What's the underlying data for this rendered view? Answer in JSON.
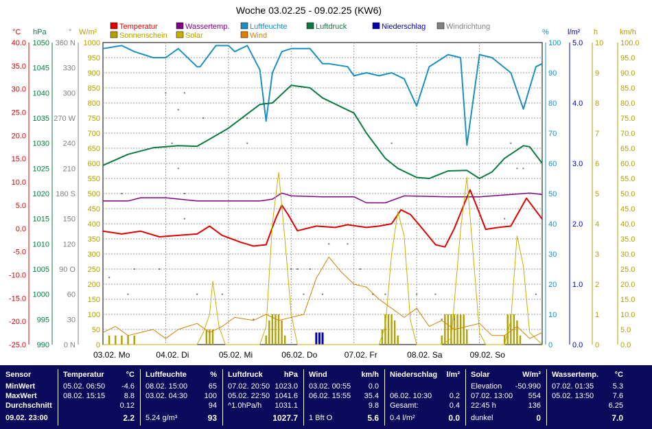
{
  "title": "Woche 03.02.25 - 09.02.25 (KW6)",
  "legend": [
    {
      "label": "Temperatur",
      "color": "#e00000"
    },
    {
      "label": "Wassertemp.",
      "color": "#800080"
    },
    {
      "label": "Luftfeuchte",
      "color": "#1a8fc0"
    },
    {
      "label": "Luftdruck",
      "color": "#0a7a40"
    },
    {
      "label": "Niederschlag",
      "color": "#0000b0"
    },
    {
      "label": "Windrichtung",
      "color": "#808080"
    },
    {
      "label": "Sonnenschein",
      "color": "#b0a000"
    },
    {
      "label": "Solar",
      "color": "#c8b000"
    },
    {
      "label": "Wind",
      "color": "#e08000"
    }
  ],
  "axes_units": {
    "temp": "°C",
    "press": "hPa",
    "dir": "°",
    "solar": "W/m²",
    "hum": "%",
    "rain": "l/m²",
    "sun": "h",
    "wind": "km/h"
  },
  "chart_data": {
    "type": "line",
    "x_categories": [
      "03.02. Mo",
      "04.02. Di",
      "05.02. Mi",
      "06.02. Do",
      "07.02. Fr",
      "08.02. Sa",
      "09.02. So"
    ],
    "temp_ticks": [
      "40.0",
      "35.0",
      "30.0",
      "25.0",
      "20.0",
      "15.0",
      "10.0",
      "5.0",
      "0.0",
      "-5.0",
      "-10.0",
      "-15.0",
      "-20.0",
      "-25.0"
    ],
    "press_ticks": [
      "1050",
      "1045",
      "1040",
      "1035",
      "1030",
      "1025",
      "1020",
      "1015",
      "1010",
      "1005",
      "1000",
      "995",
      "990"
    ],
    "dir_ticks": [
      "360 N",
      "330",
      "300",
      "270 W",
      "240",
      "210",
      "180 S",
      "150",
      "120",
      "90 O",
      "60",
      "30",
      "0 N"
    ],
    "solar_ticks": [
      "1000",
      "950",
      "900",
      "850",
      "800",
      "750",
      "700",
      "650",
      "600",
      "550",
      "500",
      "450",
      "400",
      "350",
      "300",
      "250",
      "200",
      "150",
      "100",
      "50",
      "0"
    ],
    "hum_ticks": [
      "100",
      "90",
      "80",
      "70",
      "60",
      "50",
      "40",
      "30",
      "20",
      "10",
      "0"
    ],
    "rain_ticks": [
      "5.0",
      "4.0",
      "3.0",
      "2.0",
      "1.0",
      "0.0"
    ],
    "sun_ticks": [
      "10",
      "9",
      "8",
      "7",
      "6",
      "5",
      "4",
      "3",
      "2",
      "1",
      "0"
    ],
    "wind_ticks": [
      "100.0",
      "95.0",
      "90.0",
      "85.0",
      "80.0",
      "75.0",
      "70.0",
      "65.0",
      "60.0",
      "55.0",
      "50.0",
      "45.0",
      "40.0",
      "35.0",
      "30.0",
      "25.0",
      "20.0",
      "15.0",
      "10.0",
      "5.0",
      "0.0"
    ],
    "series": [
      {
        "name": "Temperatur",
        "unit": "°C",
        "x": [
          0,
          0.3,
          0.6,
          0.9,
          1.2,
          1.5,
          1.7,
          1.9,
          2.2,
          2.4,
          2.6,
          2.75,
          2.85,
          2.95,
          3.1,
          3.4,
          3.7,
          3.9,
          4.2,
          4.4,
          4.6,
          4.75,
          4.9,
          5.1,
          5.3,
          5.45,
          5.6,
          5.75,
          5.85,
          5.95,
          6.1,
          6.3,
          6.5,
          6.75,
          7
        ],
        "y": [
          -0.6,
          -1.2,
          -0.6,
          -1.8,
          -1.5,
          -1.2,
          0.5,
          -1.5,
          -3.0,
          -3.8,
          -3.5,
          2.0,
          5.0,
          3.0,
          -0.5,
          0.5,
          0.2,
          0.8,
          0.2,
          0.5,
          1.0,
          4.0,
          3.0,
          -0.2,
          -3.5,
          -4.0,
          0,
          5.0,
          8.3,
          5.0,
          -0.2,
          0.2,
          0.5,
          6.5,
          2.0
        ]
      },
      {
        "name": "Wassertemp.",
        "unit": "°C",
        "x": [
          0,
          0.4,
          0.6,
          1.0,
          1.5,
          2.0,
          2.5,
          2.7,
          2.85,
          3.0,
          3.5,
          4.0,
          4.2,
          4.5,
          4.8,
          5.5,
          5.8,
          6.0,
          6.5,
          6.8,
          7
        ],
        "y": [
          5.9,
          5.9,
          6.6,
          6.6,
          5.9,
          5.9,
          5.9,
          6.3,
          7.6,
          7.0,
          6.8,
          6.8,
          5.5,
          5.5,
          7.0,
          6.8,
          6.8,
          6.8,
          7.3,
          7.6,
          7.3
        ]
      },
      {
        "name": "Luftfeuchte",
        "unit": "%",
        "x": [
          0,
          0.3,
          0.5,
          0.8,
          1.0,
          1.2,
          1.5,
          1.55,
          1.8,
          2.0,
          2.1,
          2.3,
          2.5,
          2.6,
          2.7,
          2.85,
          3.0,
          3.3,
          3.5,
          3.6,
          3.9,
          4.0,
          4.2,
          4.4,
          4.6,
          4.8,
          5.0,
          5.2,
          5.5,
          5.7,
          5.8,
          6.0,
          6.2,
          6.5,
          6.7,
          6.9,
          7.0
        ],
        "y": [
          98,
          99,
          97,
          95,
          95,
          98,
          92,
          92,
          99,
          99,
          97,
          99,
          91,
          74,
          90,
          97,
          98,
          98,
          93,
          93,
          92,
          89,
          90,
          89,
          90,
          88,
          79,
          92,
          96,
          95,
          66,
          96,
          95,
          90,
          78,
          92,
          93
        ]
      },
      {
        "name": "Luftdruck",
        "unit": "hPa",
        "x": [
          0,
          0.4,
          0.8,
          1.0,
          1.2,
          1.5,
          1.7,
          2.0,
          2.5,
          2.7,
          3.0,
          3.3,
          3.5,
          4.0,
          4.2,
          4.5,
          4.7,
          5.0,
          5.2,
          5.5,
          5.8,
          6.0,
          6.2,
          6.4,
          6.7,
          6.8,
          7.0
        ],
        "y": [
          1025.6,
          1027.8,
          1029.1,
          1029.3,
          1029.5,
          1029.4,
          1030.8,
          1033.0,
          1037.7,
          1038.0,
          1041.5,
          1041.0,
          1039.0,
          1036.0,
          1032.0,
          1027.0,
          1025.0,
          1023.2,
          1023.0,
          1024.5,
          1024.6,
          1023.0,
          1024.3,
          1027.0,
          1029.5,
          1029.3,
          1026.0
        ]
      },
      {
        "name": "Solar",
        "unit": "W/m²",
        "x": [
          0,
          1.5,
          1.6,
          1.7,
          1.75,
          1.85,
          1.95,
          2.5,
          2.6,
          2.7,
          2.8,
          2.9,
          3.0,
          3.1,
          3.5,
          4.4,
          4.5,
          4.6,
          4.7,
          4.8,
          4.9,
          5.0,
          5.4,
          5.55,
          5.7,
          5.8,
          5.9,
          6.0,
          6.1,
          6.4,
          6.5,
          6.6,
          6.7,
          6.8,
          7
        ],
        "y": [
          0,
          0,
          40,
          100,
          210,
          60,
          0,
          0,
          60,
          400,
          570,
          350,
          100,
          0,
          0,
          0,
          60,
          300,
          440,
          360,
          80,
          0,
          0,
          20,
          380,
          554,
          300,
          40,
          0,
          0,
          80,
          360,
          260,
          40,
          0
        ]
      },
      {
        "name": "Wind",
        "unit": "km/h",
        "x": [
          0,
          0.2,
          0.4,
          0.6,
          0.8,
          1.0,
          1.2,
          1.5,
          1.7,
          1.9,
          2.1,
          2.4,
          2.6,
          2.8,
          3.0,
          3.2,
          3.4,
          3.6,
          3.8,
          4.0,
          4.2,
          4.4,
          4.6,
          4.8,
          5.0,
          5.2,
          5.4,
          5.6,
          5.8,
          6.0,
          6.2,
          6.4,
          6.6,
          6.8,
          7.0
        ],
        "y": [
          4,
          6,
          3,
          4,
          5,
          2,
          5,
          7,
          4,
          6,
          9,
          8,
          10,
          8,
          9,
          10,
          22,
          29,
          24,
          20,
          19,
          15,
          12,
          9,
          12,
          6,
          8,
          5,
          6,
          7,
          3,
          3,
          6,
          2,
          4
        ]
      }
    ],
    "precipitation": {
      "unit": "l/m²",
      "x": [
        3.4,
        3.45,
        3.5
      ],
      "y": [
        0.2,
        0.2,
        0.2
      ]
    },
    "wind_direction": {
      "unit": "°",
      "x": [
        0.1,
        0.3,
        0.4,
        0.5,
        0.9,
        1.0,
        1.1,
        1.2,
        1.2,
        1.3,
        1.3,
        1.3,
        1.5,
        1.6,
        1.9,
        2.3,
        2.3,
        2.3,
        2.4,
        3.0,
        3.1,
        3.2,
        3.3,
        3.5,
        3.6,
        3.9,
        4.1,
        4.3,
        4.5,
        4.6,
        5.0,
        5.3,
        5.4,
        5.6,
        6.4,
        6.5,
        6.6,
        6.7,
        6.8,
        6.9
      ],
      "y": [
        80,
        180,
        60,
        90,
        90,
        300,
        240,
        210,
        280,
        300,
        180,
        150,
        60,
        270,
        60,
        240,
        270,
        120,
        30,
        90,
        90,
        60,
        90,
        60,
        120,
        120,
        90,
        60,
        60,
        240,
        60,
        60,
        30,
        30,
        150,
        240,
        210,
        210,
        180,
        60
      ]
    },
    "sunshine": {
      "unit": "h",
      "x": [
        0.1,
        0.2,
        0.3,
        0.4,
        0.5,
        1.65,
        1.7,
        1.75,
        2.6,
        2.65,
        2.7,
        2.75,
        2.8,
        2.85,
        2.9,
        4.45,
        4.5,
        4.55,
        4.6,
        4.65,
        4.7,
        5.4,
        5.45,
        5.5,
        5.55,
        5.6,
        5.65,
        5.7,
        5.75,
        5.8,
        6.4,
        6.45,
        6.5,
        6.55,
        6.6,
        6.65
      ],
      "y": [
        0.3,
        0.3,
        0.3,
        0.3,
        0.3,
        0.5,
        0.5,
        0.5,
        0.3,
        0.8,
        1,
        1,
        1,
        0.8,
        0.3,
        0.5,
        1,
        1,
        1,
        0.8,
        0.3,
        0.3,
        1,
        1,
        1,
        1,
        1,
        1,
        1,
        0.5,
        0.3,
        1,
        1,
        1,
        0.8,
        0.3
      ]
    }
  },
  "stats": {
    "sensor": {
      "header": "Sensor",
      "rows": [
        "MinWert",
        "MaxWert",
        "Durchschnitt"
      ],
      "date": "09.02. 23:00"
    },
    "cols": [
      {
        "name": "Temperatur",
        "unit": "°C",
        "rows": [
          [
            "05.02. 06:50",
            "-4.6"
          ],
          [
            "08.02. 15:15",
            "8.8"
          ],
          [
            "",
            "0.12"
          ]
        ],
        "last": [
          "",
          "2.2"
        ]
      },
      {
        "name": "Luftfeuchte",
        "unit": "%",
        "rows": [
          [
            "08.02. 15:00",
            "65"
          ],
          [
            "03.02. 04:30",
            "100"
          ],
          [
            "",
            "94"
          ]
        ],
        "last": [
          "5.24 g/m³",
          "93"
        ]
      },
      {
        "name": "Luftdruck",
        "unit": "hPa",
        "rows": [
          [
            "07.02. 20:50",
            "1023.0"
          ],
          [
            "05.02. 22:50",
            "1041.6"
          ],
          [
            "^1.0hPa/h",
            "1031.1"
          ]
        ],
        "last": [
          "",
          "1027.7"
        ]
      },
      {
        "name": "Wind",
        "unit": "km/h",
        "rows": [
          [
            "03.02. 00:55",
            "0.0"
          ],
          [
            "06.02. 15:55",
            "35.4"
          ],
          [
            "",
            "9.8"
          ]
        ],
        "last": [
          "1 Bft O",
          "5.6"
        ]
      },
      {
        "name": "Niederschlag",
        "unit": "l/m²",
        "rows": [
          [
            "",
            ""
          ],
          [
            "06.02. 10:30",
            "0.2"
          ],
          [
            "Gesamt:",
            "0.4"
          ]
        ],
        "last": [
          "0.4 l/m²",
          "0.0"
        ]
      },
      {
        "name": "Solar",
        "unit": "W/m²",
        "rows": [
          [
            "Elevation",
            "-50.990"
          ],
          [
            "07.02. 13:00",
            "554"
          ],
          [
            "22:45 h",
            "136"
          ]
        ],
        "last": [
          "dunkel",
          "0"
        ]
      },
      {
        "name": "Wassertemp.",
        "unit": "°C",
        "rows": [
          [
            "07.02. 01:35",
            "5.3"
          ],
          [
            "05.02. 13:50",
            "7.6"
          ],
          [
            "",
            "6.25"
          ]
        ],
        "last": [
          "",
          "7.0"
        ]
      }
    ]
  }
}
